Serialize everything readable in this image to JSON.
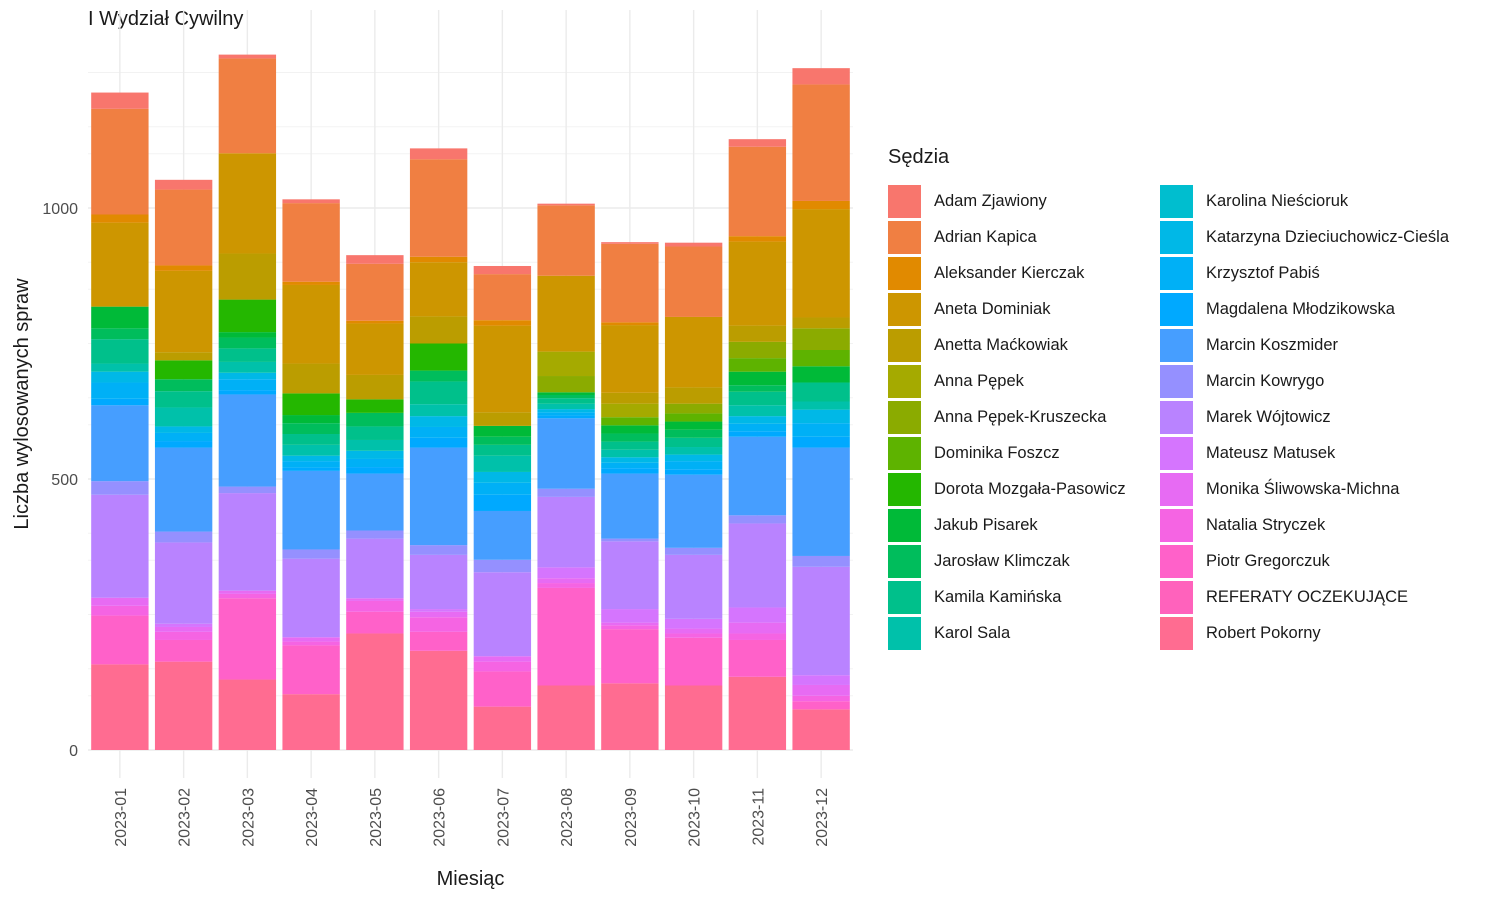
{
  "title": "I Wydział Cywilny",
  "legend_title": "Sędzia",
  "chart_data": {
    "type": "bar",
    "stacked": true,
    "title": "I Wydział Cywilny",
    "xlabel": "Miesiąc",
    "ylabel": "Liczba wylosowanych spraw",
    "ylim": [
      0,
      1300
    ],
    "y_ticks": [
      0,
      500,
      1000
    ],
    "grid": true,
    "legend_position": "right",
    "categories": [
      "2023-01",
      "2023-02",
      "2023-03",
      "2023-04",
      "2023-05",
      "2023-06",
      "2023-07",
      "2023-08",
      "2023-09",
      "2023-10",
      "2023-11",
      "2023-12"
    ],
    "series": [
      {
        "name": "Robert Pokorny",
        "color": "#FF6C91",
        "values": [
          158,
          163,
          130,
          103,
          215,
          183,
          80,
          119,
          123,
          119,
          135,
          75
        ]
      },
      {
        "name": "REFERATY OCZEKUJĄCE",
        "color": "#FF62BC",
        "values": [
          0,
          0,
          0,
          0,
          0,
          0,
          0,
          0,
          0,
          0,
          0,
          0
        ]
      },
      {
        "name": "Piotr Gregorczuk",
        "color": "#FF61C9",
        "values": [
          90,
          40,
          150,
          90,
          40,
          35,
          65,
          180,
          100,
          88,
          68,
          15
        ]
      },
      {
        "name": "Natalia Stryczek",
        "color": "#F564E3",
        "values": [
          18,
          15,
          8,
          7,
          20,
          27,
          18,
          9,
          7,
          8,
          12,
          10
        ]
      },
      {
        "name": "Monika Śliwowska-Michna",
        "color": "#E76BF3",
        "values": [
          15,
          9,
          6,
          8,
          5,
          10,
          10,
          9,
          5,
          9,
          20,
          20
        ]
      },
      {
        "name": "Mateusz Matusek",
        "color": "#D575FE",
        "values": [
          0,
          6,
          0,
          0,
          0,
          5,
          0,
          20,
          25,
          18,
          28,
          18
        ]
      },
      {
        "name": "Marek Wójtowicz",
        "color": "#B983FF",
        "values": [
          190,
          150,
          180,
          145,
          110,
          100,
          155,
          130,
          125,
          118,
          155,
          200
        ]
      },
      {
        "name": "Marcin Kowrygo",
        "color": "#9590FF",
        "values": [
          25,
          20,
          12,
          17,
          15,
          18,
          23,
          15,
          5,
          13,
          15,
          20
        ]
      },
      {
        "name": "Marcin Koszmider",
        "color": "#469EFF",
        "values": [
          140,
          155,
          170,
          145,
          105,
          180,
          90,
          130,
          120,
          135,
          145,
          200
        ]
      },
      {
        "name": "Magdalena Młodzikowska",
        "color": "#00A9FF",
        "values": [
          12,
          12,
          8,
          6,
          12,
          18,
          30,
          5,
          10,
          10,
          10,
          20
        ]
      },
      {
        "name": "Krzysztof Pabiś",
        "color": "#00B0F6",
        "values": [
          30,
          15,
          20,
          12,
          15,
          20,
          22,
          6,
          10,
          15,
          14,
          25
        ]
      },
      {
        "name": "Katarzyna Dzieciuchowicz-Cieśla",
        "color": "#00B8E7",
        "values": [
          20,
          12,
          12,
          10,
          15,
          20,
          20,
          6,
          10,
          12,
          14,
          25
        ]
      },
      {
        "name": "Karolina Nieścioruk",
        "color": "#00BECF",
        "values": [
          0,
          0,
          0,
          0,
          0,
          0,
          0,
          0,
          0,
          0,
          0,
          0
        ]
      },
      {
        "name": "Karol Sala",
        "color": "#00C1AA",
        "values": [
          15,
          35,
          20,
          20,
          20,
          22,
          30,
          10,
          14,
          14,
          20,
          15
        ]
      },
      {
        "name": "Kamila Kamińska",
        "color": "#00C08B",
        "values": [
          45,
          30,
          25,
          20,
          25,
          42,
          20,
          10,
          15,
          17,
          25,
          35
        ]
      },
      {
        "name": "Jarosław Klimczak",
        "color": "#00BD5C",
        "values": [
          20,
          22,
          20,
          20,
          25,
          20,
          15,
          6,
          15,
          15,
          12,
          0
        ]
      },
      {
        "name": "Jakub Pisarek",
        "color": "#00BA38",
        "values": [
          40,
          0,
          10,
          15,
          0,
          0,
          20,
          5,
          15,
          15,
          25,
          30
        ]
      },
      {
        "name": "Dorota Mozgała-Pasowicz",
        "color": "#24B700",
        "values": [
          0,
          35,
          60,
          40,
          25,
          50,
          0,
          0,
          0,
          0,
          0,
          0
        ]
      },
      {
        "name": "Dominika Foszcz",
        "color": "#5EB300",
        "values": [
          0,
          0,
          0,
          0,
          0,
          0,
          0,
          0,
          15,
          15,
          25,
          30
        ]
      },
      {
        "name": "Anna Pępek-Kruszecka",
        "color": "#8BAB00",
        "values": [
          0,
          0,
          0,
          0,
          0,
          0,
          0,
          30,
          0,
          18,
          30,
          40
        ]
      },
      {
        "name": "Anna Pępek",
        "color": "#A5AA00",
        "values": [
          0,
          0,
          0,
          0,
          0,
          0,
          0,
          45,
          25,
          0,
          0,
          0
        ]
      },
      {
        "name": "Anetta Maćkowiak",
        "color": "#BB9D00",
        "values": [
          0,
          15,
          85,
          55,
          45,
          50,
          25,
          0,
          20,
          30,
          30,
          20
        ]
      },
      {
        "name": "Aneta Dominiak",
        "color": "#CD9600",
        "values": [
          155,
          150,
          185,
          145,
          95,
          100,
          160,
          140,
          125,
          130,
          155,
          200
        ]
      },
      {
        "name": "Aleksander Kierczak",
        "color": "#E18A00",
        "values": [
          15,
          10,
          0,
          6,
          5,
          10,
          10,
          0,
          5,
          0,
          10,
          15
        ]
      },
      {
        "name": "Adrian Kapica",
        "color": "#F07F42",
        "values": [
          195,
          140,
          175,
          145,
          105,
          180,
          85,
          130,
          145,
          130,
          165,
          215
        ]
      },
      {
        "name": "Adam Zjawiony",
        "color": "#F8766D",
        "values": [
          30,
          18,
          7,
          7,
          16,
          20,
          15,
          3,
          3,
          7,
          14,
          30
        ]
      }
    ]
  },
  "legend": {
    "columns": [
      [
        {
          "label": "Adam Zjawiony",
          "color": "#F8766D"
        },
        {
          "label": "Adrian Kapica",
          "color": "#F07F42"
        },
        {
          "label": "Aleksander Kierczak",
          "color": "#E18A00"
        },
        {
          "label": "Aneta Dominiak",
          "color": "#CD9600"
        },
        {
          "label": "Anetta Maćkowiak",
          "color": "#BB9D00"
        },
        {
          "label": "Anna Pępek",
          "color": "#A5AA00"
        },
        {
          "label": "Anna Pępek-Kruszecka",
          "color": "#8BAB00"
        },
        {
          "label": "Dominika Foszcz",
          "color": "#5EB300"
        },
        {
          "label": "Dorota Mozgała-Pasowicz",
          "color": "#24B700"
        },
        {
          "label": "Jakub Pisarek",
          "color": "#00BA38"
        },
        {
          "label": "Jarosław Klimczak",
          "color": "#00BD5C"
        },
        {
          "label": "Kamila Kamińska",
          "color": "#00C08B"
        },
        {
          "label": "Karol Sala",
          "color": "#00C1AA"
        }
      ],
      [
        {
          "label": "Karolina Nieścioruk",
          "color": "#00BECF"
        },
        {
          "label": "Katarzyna Dzieciuchowicz-Cieśla",
          "color": "#00B8E7"
        },
        {
          "label": "Krzysztof Pabiś",
          "color": "#00B0F6"
        },
        {
          "label": "Magdalena Młodzikowska",
          "color": "#00A9FF"
        },
        {
          "label": "Marcin Koszmider",
          "color": "#469EFF"
        },
        {
          "label": "Marcin Kowrygo",
          "color": "#9590FF"
        },
        {
          "label": "Marek Wójtowicz",
          "color": "#B983FF"
        },
        {
          "label": "Mateusz Matusek",
          "color": "#D575FE"
        },
        {
          "label": "Monika Śliwowska-Michna",
          "color": "#E76BF3"
        },
        {
          "label": "Natalia Stryczek",
          "color": "#F564E3"
        },
        {
          "label": "Piotr Gregorczuk",
          "color": "#FF61C9"
        },
        {
          "label": "REFERATY OCZEKUJĄCE",
          "color": "#FF62BC"
        },
        {
          "label": "Robert Pokorny",
          "color": "#FF6C91"
        }
      ]
    ]
  }
}
